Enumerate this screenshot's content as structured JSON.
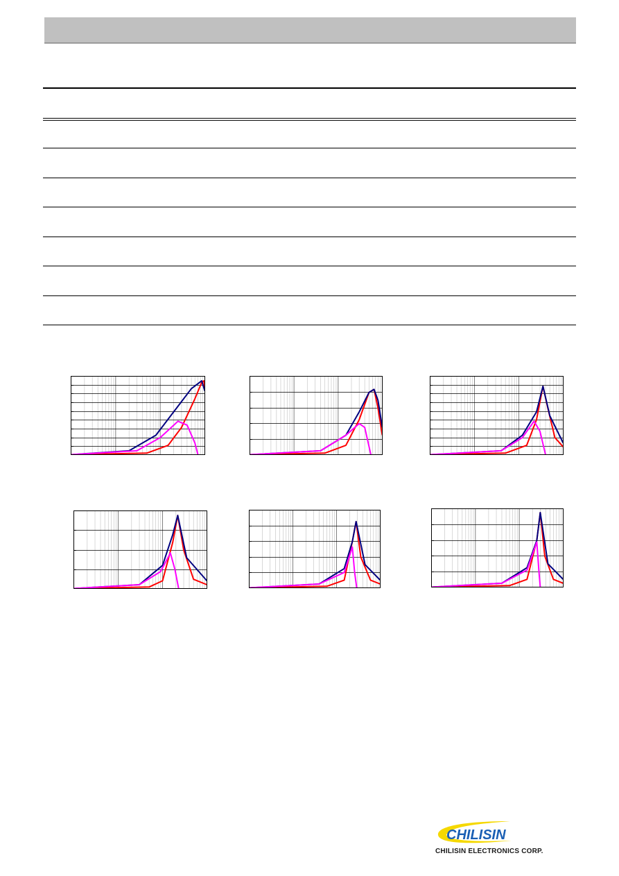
{
  "colors": {
    "header_bar": "#c0c0c0",
    "series_z": "#ff0000",
    "series_r": "#000080",
    "series_x": "#ff00ff",
    "logo_blue": "#1a5fb4",
    "logo_yellow": "#f5d800"
  },
  "footer": {
    "company_name": "CHILISIN ELECTRONICS CORP."
  },
  "logo": {
    "wordmark": "CHILISIN"
  },
  "chart_data": [
    {
      "type": "line",
      "xscale": "log",
      "xlim": [
        1,
        1000
      ],
      "ylim": [
        0,
        1
      ],
      "grid": true,
      "series": [
        {
          "values": [
            [
              1,
              0
            ],
            [
              50,
              0.02
            ],
            [
              150,
              0.12
            ],
            [
              300,
              0.35
            ],
            [
              600,
              0.72
            ],
            [
              850,
              0.93
            ],
            [
              950,
              0.95
            ],
            [
              1000,
              0.85
            ]
          ]
        },
        {
          "values": [
            [
              1,
              0
            ],
            [
              20,
              0.05
            ],
            [
              80,
              0.25
            ],
            [
              200,
              0.55
            ],
            [
              500,
              0.85
            ],
            [
              850,
              0.95
            ],
            [
              1000,
              0.82
            ]
          ]
        },
        {
          "values": [
            [
              1,
              0
            ],
            [
              30,
              0.05
            ],
            [
              100,
              0.22
            ],
            [
              250,
              0.43
            ],
            [
              400,
              0.38
            ],
            [
              600,
              0.15
            ],
            [
              700,
              0
            ]
          ]
        }
      ]
    },
    {
      "type": "line",
      "xscale": "log",
      "xlim": [
        1,
        1000
      ],
      "ylim": [
        0,
        1
      ],
      "grid": true,
      "series": [
        {
          "values": [
            [
              1,
              0
            ],
            [
              50,
              0.02
            ],
            [
              150,
              0.12
            ],
            [
              300,
              0.45
            ],
            [
              500,
              0.8
            ],
            [
              650,
              0.84
            ],
            [
              800,
              0.6
            ],
            [
              1000,
              0.25
            ]
          ]
        },
        {
          "values": [
            [
              1,
              0
            ],
            [
              40,
              0.05
            ],
            [
              150,
              0.25
            ],
            [
              300,
              0.55
            ],
            [
              500,
              0.8
            ],
            [
              650,
              0.84
            ],
            [
              800,
              0.7
            ],
            [
              1000,
              0.35
            ]
          ]
        },
        {
          "values": [
            [
              1,
              0
            ],
            [
              40,
              0.05
            ],
            [
              150,
              0.25
            ],
            [
              300,
              0.4
            ],
            [
              400,
              0.35
            ],
            [
              550,
              0
            ]
          ]
        }
      ]
    },
    {
      "type": "line",
      "xscale": "log",
      "xlim": [
        1,
        1000
      ],
      "ylim": [
        0,
        1
      ],
      "grid": true,
      "series": [
        {
          "values": [
            [
              1,
              0
            ],
            [
              50,
              0.02
            ],
            [
              150,
              0.12
            ],
            [
              250,
              0.45
            ],
            [
              350,
              0.88
            ],
            [
              450,
              0.6
            ],
            [
              650,
              0.22
            ],
            [
              1000,
              0.1
            ]
          ]
        },
        {
          "values": [
            [
              1,
              0
            ],
            [
              40,
              0.05
            ],
            [
              120,
              0.25
            ],
            [
              250,
              0.55
            ],
            [
              350,
              0.88
            ],
            [
              500,
              0.5
            ],
            [
              1000,
              0.15
            ]
          ]
        },
        {
          "values": [
            [
              1,
              0
            ],
            [
              40,
              0.05
            ],
            [
              120,
              0.22
            ],
            [
              220,
              0.43
            ],
            [
              300,
              0.3
            ],
            [
              400,
              0
            ]
          ]
        }
      ]
    },
    {
      "type": "line",
      "xscale": "log",
      "xlim": [
        1,
        1000
      ],
      "ylim": [
        0,
        1
      ],
      "grid": true,
      "series": [
        {
          "values": [
            [
              1,
              0
            ],
            [
              50,
              0.02
            ],
            [
              100,
              0.1
            ],
            [
              170,
              0.6
            ],
            [
              220,
              0.95
            ],
            [
              300,
              0.5
            ],
            [
              500,
              0.12
            ],
            [
              1000,
              0.05
            ]
          ]
        },
        {
          "values": [
            [
              1,
              0
            ],
            [
              30,
              0.05
            ],
            [
              100,
              0.3
            ],
            [
              170,
              0.7
            ],
            [
              220,
              0.95
            ],
            [
              350,
              0.4
            ],
            [
              1000,
              0.1
            ]
          ]
        },
        {
          "values": [
            [
              1,
              0
            ],
            [
              30,
              0.05
            ],
            [
              90,
              0.22
            ],
            [
              150,
              0.46
            ],
            [
              190,
              0.25
            ],
            [
              230,
              0
            ]
          ]
        }
      ]
    },
    {
      "type": "line",
      "xscale": "log",
      "xlim": [
        1,
        1000
      ],
      "ylim": [
        0,
        1
      ],
      "grid": true,
      "series": [
        {
          "values": [
            [
              1,
              0
            ],
            [
              60,
              0.02
            ],
            [
              150,
              0.1
            ],
            [
              230,
              0.6
            ],
            [
              280,
              0.86
            ],
            [
              360,
              0.4
            ],
            [
              600,
              0.1
            ],
            [
              1000,
              0.05
            ]
          ]
        },
        {
          "values": [
            [
              1,
              0
            ],
            [
              40,
              0.05
            ],
            [
              150,
              0.25
            ],
            [
              230,
              0.6
            ],
            [
              280,
              0.86
            ],
            [
              450,
              0.3
            ],
            [
              1000,
              0.1
            ]
          ]
        },
        {
          "values": [
            [
              1,
              0
            ],
            [
              40,
              0.05
            ],
            [
              150,
              0.2
            ],
            [
              230,
              0.53
            ],
            [
              260,
              0.2
            ],
            [
              290,
              0
            ]
          ]
        }
      ]
    },
    {
      "type": "line",
      "xscale": "log",
      "xlim": [
        1,
        1000
      ],
      "ylim": [
        0,
        1
      ],
      "grid": true,
      "series": [
        {
          "values": [
            [
              1,
              0
            ],
            [
              60,
              0.02
            ],
            [
              150,
              0.1
            ],
            [
              250,
              0.6
            ],
            [
              300,
              0.96
            ],
            [
              380,
              0.4
            ],
            [
              600,
              0.1
            ],
            [
              1000,
              0.05
            ]
          ]
        },
        {
          "values": [
            [
              1,
              0
            ],
            [
              40,
              0.05
            ],
            [
              150,
              0.25
            ],
            [
              250,
              0.6
            ],
            [
              300,
              0.96
            ],
            [
              450,
              0.3
            ],
            [
              1000,
              0.1
            ]
          ]
        },
        {
          "values": [
            [
              1,
              0
            ],
            [
              40,
              0.05
            ],
            [
              150,
              0.22
            ],
            [
              250,
              0.58
            ],
            [
              280,
              0.2
            ],
            [
              300,
              0
            ]
          ]
        }
      ]
    }
  ]
}
